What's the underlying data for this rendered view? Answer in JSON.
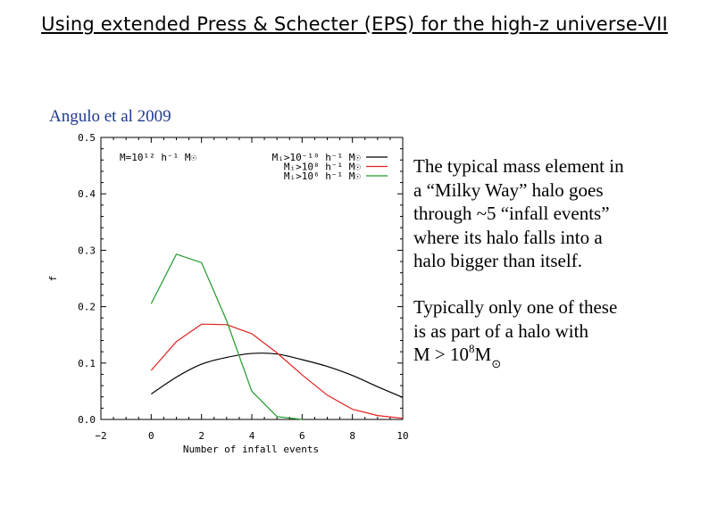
{
  "slide": {
    "title": "Using extended Press & Schecter (EPS) for the high-z universe-VII"
  },
  "figure": {
    "citation": "Angulo et al 2009",
    "annotation": "M=10¹² h⁻¹ M☉"
  },
  "text": {
    "paragraph1": [
      "The typical mass element in",
      "a “Milky Way” halo goes",
      "through ~5 “infall events”",
      "where its halo falls into a",
      "halo bigger than itself."
    ],
    "paragraph2": [
      "Typically only one of these",
      "is as part of a halo with"
    ],
    "mass_line": {
      "prefix": "M > 10",
      "exponent": "8",
      "symbol": "M",
      "subscript": "⊙"
    }
  },
  "chart_data": {
    "type": "line",
    "title": "",
    "xlabel": "Number of infall events",
    "ylabel": "f",
    "xlim": [
      -2,
      10
    ],
    "ylim": [
      0,
      0.5
    ],
    "xticks": [
      -2,
      0,
      2,
      4,
      6,
      8,
      10
    ],
    "yticks": [
      0.0,
      0.1,
      0.2,
      0.3,
      0.4,
      0.5
    ],
    "xtick_labels": [
      "−2",
      "0",
      "2",
      "4",
      "6",
      "8",
      "10"
    ],
    "ytick_labels": [
      "0.0",
      "0.1",
      "0.2",
      "0.3",
      "0.4",
      "0.5"
    ],
    "grid": false,
    "legend_position": "top-right",
    "series": [
      {
        "name": "Mᵢ>10⁻¹⁰ h⁻¹ M☉",
        "color": "#000000",
        "x": [
          0,
          1,
          2,
          3,
          4,
          5,
          6,
          7,
          8,
          9,
          10
        ],
        "y": [
          0.045,
          0.075,
          0.098,
          0.11,
          0.117,
          0.116,
          0.106,
          0.094,
          0.078,
          0.058,
          0.039
        ]
      },
      {
        "name": "Mᵢ>10⁸ h⁻¹ M☉",
        "color": "#e02020",
        "x": [
          0,
          1,
          2,
          3,
          4,
          5,
          6,
          7,
          8,
          9,
          10
        ],
        "y": [
          0.087,
          0.138,
          0.169,
          0.168,
          0.152,
          0.118,
          0.079,
          0.043,
          0.018,
          0.007,
          0.002
        ]
      },
      {
        "name": "Mᵢ>10⁶ h⁻¹ M☉",
        "color": "#1f9a2a",
        "x": [
          0,
          1,
          2,
          3,
          4,
          5,
          6
        ],
        "y": [
          0.205,
          0.293,
          0.278,
          0.175,
          0.05,
          0.005,
          0.0
        ]
      }
    ]
  }
}
